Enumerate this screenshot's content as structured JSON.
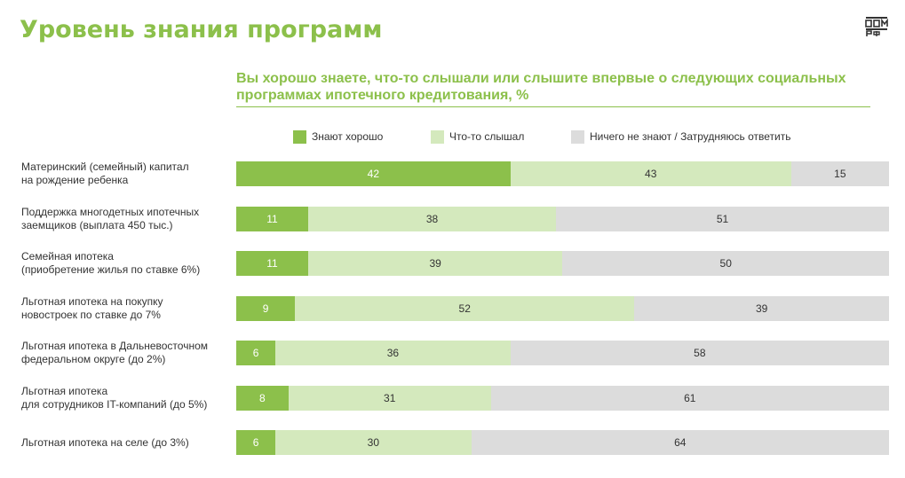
{
  "header": {
    "title": "Уровень знания программ",
    "logo_text_top": "ДОМ",
    "logo_text_bottom": "РФ"
  },
  "colors": {
    "good": "#8cc04b",
    "heard": "#d4e9bd",
    "none": "#dcdcdc",
    "accent": "#8cc04b"
  },
  "chart_data": {
    "type": "bar",
    "orientation": "horizontal",
    "stacked": true,
    "title": "Вы хорошо знаете, что-то слышали или слышите впервые о следующих социальных программах ипотечного кредитования, %",
    "legend_position": "top",
    "categories": [
      [
        "Материнский (семейный) капитал",
        "на рождение ребенка"
      ],
      [
        "Поддержка многодетных ипотечных",
        "заемщиков (выплата 450 тыс.)"
      ],
      [
        "Семейная ипотека",
        "(приобретение жилья по ставке 6%)"
      ],
      [
        "Льготная ипотека на покупку",
        "новостроек по ставке до 7%"
      ],
      [
        "Льготная ипотека в Дальневосточном",
        "федеральном округе (до 2%)"
      ],
      [
        "Льготная ипотека",
        "для сотрудников IT-компаний (до 5%)"
      ],
      [
        "Льготная ипотека на селе (до 3%)"
      ]
    ],
    "series": [
      {
        "name": "Знают хорошо",
        "values": [
          42,
          11,
          11,
          9,
          6,
          8,
          6
        ]
      },
      {
        "name": "Что-то слышал",
        "values": [
          43,
          38,
          39,
          52,
          36,
          31,
          30
        ]
      },
      {
        "name": "Ничего не знают / Затрудняюсь ответить",
        "values": [
          15,
          51,
          50,
          39,
          58,
          61,
          64
        ]
      }
    ]
  }
}
